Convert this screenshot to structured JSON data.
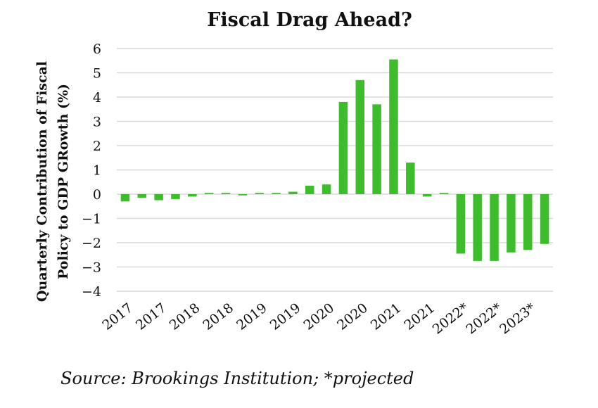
{
  "chart_data": {
    "type": "bar",
    "title": "Fiscal Drag Ahead?",
    "ylabel_lines": [
      "Quarterly Contribution of Fiscal",
      "Policy to GDP GRowth (%)"
    ],
    "xlabel": "",
    "ylim": [
      -4,
      6
    ],
    "yticks": [
      "6",
      "5",
      "4",
      "3",
      "2",
      "1",
      "0",
      "−1",
      "−2",
      "−3",
      "−4"
    ],
    "ytick_values": [
      6,
      5,
      4,
      3,
      2,
      1,
      0,
      -1,
      -2,
      -3,
      -4
    ],
    "x_tick_labels": [
      "2017",
      "2017",
      "2018",
      "2018",
      "2019",
      "2019",
      "2020",
      "2020",
      "2021",
      "2021",
      "2022*",
      "2022*",
      "2023*"
    ],
    "values": [
      -0.3,
      -0.15,
      -0.25,
      -0.2,
      -0.1,
      0.05,
      0.05,
      -0.05,
      0.05,
      0.05,
      0.1,
      0.35,
      0.4,
      3.8,
      4.7,
      3.7,
      5.55,
      1.3,
      -0.1,
      0.05,
      -2.45,
      -2.75,
      -2.75,
      -2.4,
      -2.3,
      -2.05
    ],
    "bar_color": "#3dbd2c",
    "grid": true,
    "legend": "none"
  },
  "footer": {
    "source": "Source: Brookings Institution; *projected"
  }
}
